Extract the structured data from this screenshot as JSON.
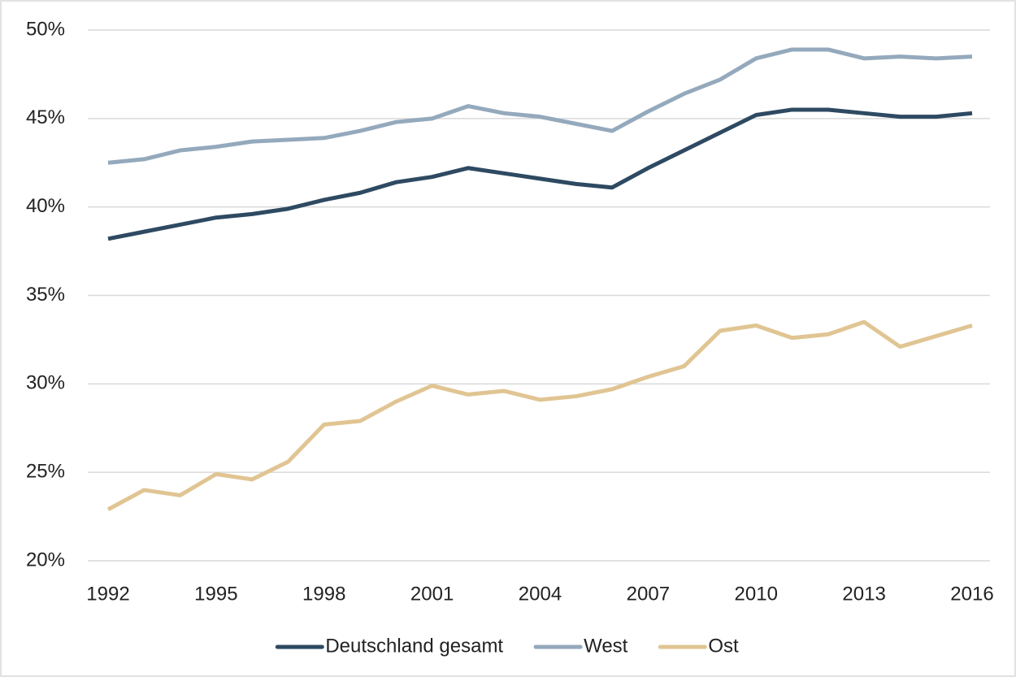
{
  "chart_data": {
    "type": "line",
    "x": [
      1992,
      1993,
      1994,
      1995,
      1996,
      1997,
      1998,
      1999,
      2000,
      2001,
      2002,
      2003,
      2004,
      2005,
      2006,
      2007,
      2008,
      2009,
      2010,
      2011,
      2012,
      2013,
      2014,
      2015,
      2016
    ],
    "series": [
      {
        "name": "Deutschland gesamt",
        "color": "#2e4a62",
        "values": [
          38.2,
          38.6,
          39.0,
          39.4,
          39.6,
          39.9,
          40.4,
          40.8,
          41.4,
          41.7,
          42.2,
          41.9,
          41.6,
          41.3,
          41.1,
          42.2,
          43.2,
          44.2,
          45.2,
          45.5,
          45.5,
          45.3,
          45.1,
          45.1,
          45.3
        ]
      },
      {
        "name": "West",
        "color": "#94a9bc",
        "values": [
          42.5,
          42.7,
          43.2,
          43.4,
          43.7,
          43.8,
          43.9,
          44.3,
          44.8,
          45.0,
          45.7,
          45.3,
          45.1,
          44.7,
          44.3,
          45.4,
          46.4,
          47.2,
          48.4,
          48.9,
          48.9,
          48.4,
          48.5,
          48.4,
          48.5
        ]
      },
      {
        "name": "Ost",
        "color": "#e0c593",
        "values": [
          22.9,
          24.0,
          23.7,
          24.9,
          24.6,
          25.6,
          27.7,
          27.9,
          29.0,
          29.9,
          29.4,
          29.6,
          29.1,
          29.3,
          29.7,
          30.4,
          31.0,
          33.0,
          33.3,
          32.6,
          32.8,
          33.5,
          32.1,
          32.7,
          33.3
        ]
      }
    ],
    "xlim": [
      1992,
      2016
    ],
    "xticks": [
      1992,
      1995,
      1998,
      2001,
      2004,
      2007,
      2010,
      2013,
      2016
    ],
    "ylim": [
      20,
      50
    ],
    "yticks": [
      {
        "value": 20,
        "label": "20%"
      },
      {
        "value": 25,
        "label": "25%"
      },
      {
        "value": 30,
        "label": "30%"
      },
      {
        "value": 35,
        "label": "35%"
      },
      {
        "value": 40,
        "label": "40%"
      },
      {
        "value": 45,
        "label": "45%"
      },
      {
        "value": 50,
        "label": "50%"
      }
    ],
    "grid": true,
    "legend": "bottom"
  }
}
